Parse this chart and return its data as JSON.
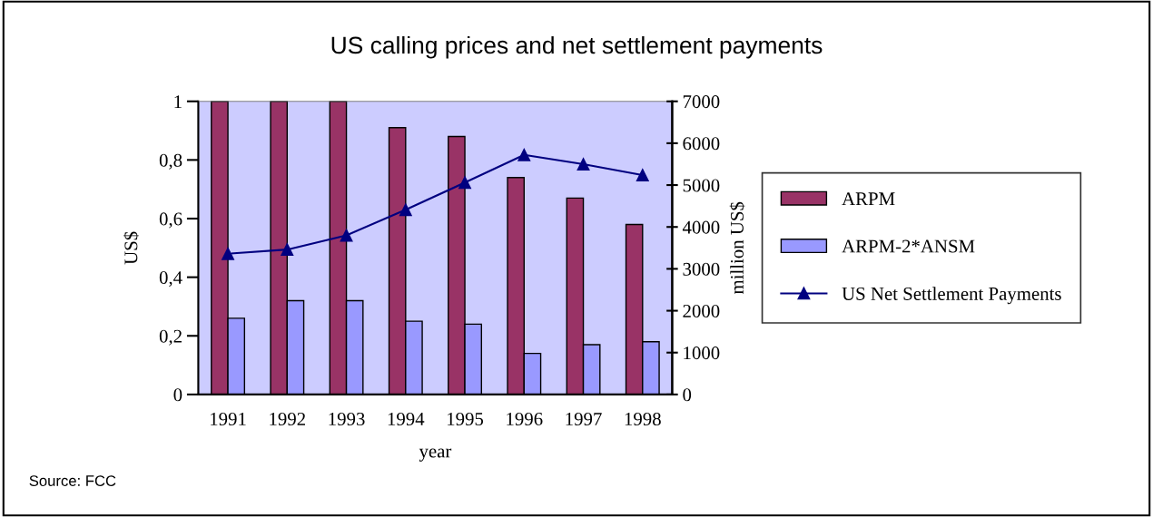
{
  "chart_data": {
    "type": "bar",
    "title": "US calling prices and net settlement payments",
    "xlabel": "year",
    "ylabel": "US$",
    "y2label": "million US$",
    "categories": [
      "1991",
      "1992",
      "1993",
      "1994",
      "1995",
      "1996",
      "1997",
      "1998"
    ],
    "series": [
      {
        "name": "ARPM",
        "color": "#993366",
        "values": [
          1.0,
          1.0,
          1.0,
          0.91,
          0.88,
          0.74,
          0.67,
          0.58
        ]
      },
      {
        "name": "ARPM-2*ANSM",
        "color": "#9999ff",
        "values": [
          0.26,
          0.32,
          0.32,
          0.25,
          0.24,
          0.14,
          0.17,
          0.18
        ]
      },
      {
        "name": "US Net Settlement Payments",
        "type": "line",
        "axis": "y2",
        "color": "#000080",
        "marker": "triangle",
        "values": [
          3360,
          3460,
          3800,
          4410,
          5060,
          5720,
          5500,
          5240
        ]
      }
    ],
    "ylim": [
      0,
      1
    ],
    "yticks": [
      0,
      {
        "value": 0.2,
        "label": "0,2"
      },
      {
        "value": 0.4,
        "label": "0,4"
      },
      {
        "value": 0.6,
        "label": "0,6"
      },
      {
        "value": 0.8,
        "label": "0,8"
      },
      1
    ],
    "y2lim": [
      0,
      7000
    ],
    "y2ticks": [
      0,
      1000,
      2000,
      3000,
      4000,
      5000,
      6000,
      7000
    ],
    "legend": "right",
    "grid": false,
    "annotations": [
      "Source: FCC"
    ]
  }
}
